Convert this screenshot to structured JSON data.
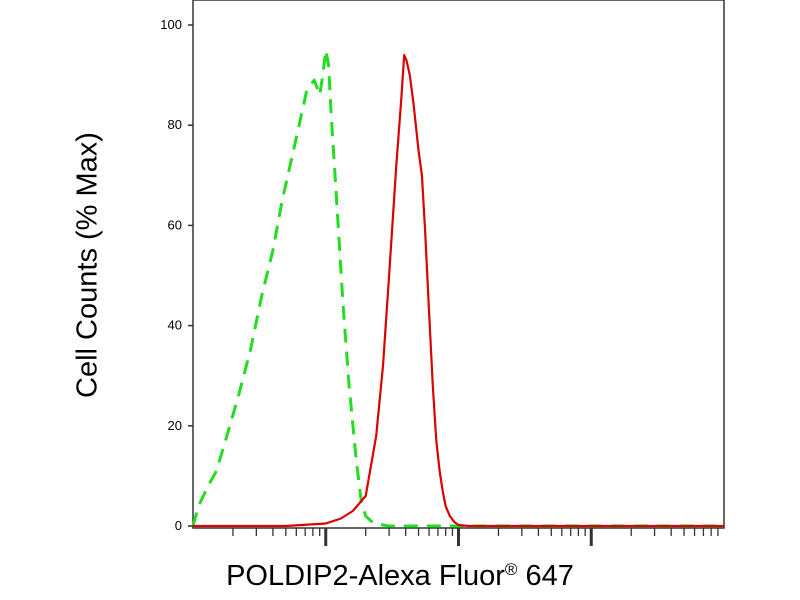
{
  "chart_data": {
    "type": "line",
    "title": "",
    "ylabel": "Cell Counts (% Max)",
    "xlabel_main": "POLDIP2-Alexa Fluor",
    "xlabel_sup": "®",
    "xlabel_tail": " 647",
    "xscale": "log",
    "xlim": [
      0.1,
      1000
    ],
    "ylim": [
      0,
      100
    ],
    "yticks": [
      0,
      20,
      40,
      60,
      80,
      100
    ],
    "grid": false,
    "series": [
      {
        "color": "#22dd22",
        "style": "dashed",
        "x": [
          0.1,
          0.11,
          0.13,
          0.15,
          0.18,
          0.22,
          0.27,
          0.33,
          0.4,
          0.47,
          0.55,
          0.63,
          0.72,
          0.82,
          0.9,
          0.95,
          1.0,
          1.05,
          1.1,
          1.2,
          1.35,
          1.5,
          1.7,
          1.85,
          2.0,
          2.3,
          3,
          5,
          10,
          1000
        ],
        "y": [
          0,
          4,
          8,
          11,
          18,
          26,
          35,
          46,
          55,
          65,
          73,
          80,
          87,
          89,
          86,
          90,
          95,
          92,
          82,
          66,
          44,
          28,
          13,
          5,
          2,
          0.5,
          0,
          0,
          0,
          0
        ]
      },
      {
        "color": "#dd0000",
        "style": "solid",
        "x": [
          0.1,
          0.5,
          1.0,
          1.3,
          1.6,
          2.0,
          2.4,
          2.7,
          3.0,
          3.4,
          3.7,
          3.9,
          4.05,
          4.3,
          4.6,
          5.0,
          5.3,
          5.6,
          6.0,
          6.4,
          6.8,
          7.2,
          7.6,
          8.0,
          8.6,
          9.3,
          10,
          12,
          1000
        ],
        "y": [
          0,
          0,
          0.5,
          1.5,
          3,
          6,
          18,
          32,
          50,
          72,
          85,
          94,
          93,
          90,
          84,
          75,
          70,
          59,
          43,
          28,
          17,
          11,
          7,
          4,
          2,
          0.8,
          0.2,
          0,
          0
        ]
      }
    ]
  }
}
